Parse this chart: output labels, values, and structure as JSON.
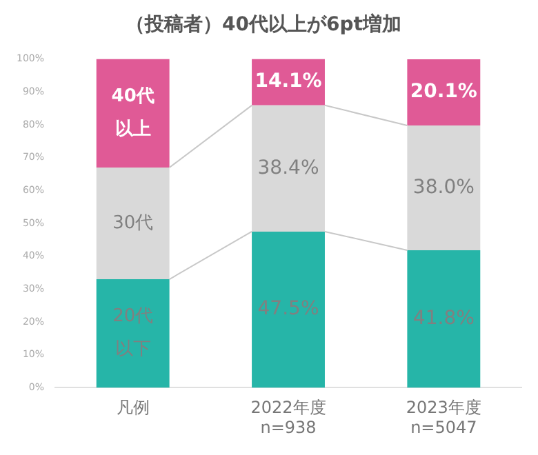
{
  "chart_data": {
    "type": "bar",
    "title": "（投稿者）40代以上が6pt増加",
    "stacked": true,
    "categories": [
      "凡例",
      "2022年度\nn=938",
      "2023年度\nn=5047"
    ],
    "series": [
      {
        "color": "#26b5a8",
        "values": [
          33,
          47.5,
          41.8
        ],
        "value_labels": [
          null,
          "47.5%",
          "41.8%"
        ]
      },
      {
        "color": "#d9d9d9",
        "values": [
          34,
          38.4,
          38.0
        ],
        "value_labels": [
          null,
          "38.4%",
          "38.0%"
        ]
      },
      {
        "color": "#e05a96",
        "values": [
          33,
          14.1,
          20.1
        ],
        "value_labels": [
          null,
          "14.1%",
          "20.1%"
        ]
      }
    ],
    "annotations": [
      "20代以下",
      "30代",
      "40代以上"
    ],
    "ylim": [
      0,
      100
    ],
    "yticks": [
      {
        "value": 0,
        "label": "0%"
      },
      {
        "value": 10,
        "label": "10%"
      },
      {
        "value": 20,
        "label": "20%"
      },
      {
        "value": 30,
        "label": "30%"
      },
      {
        "value": 40,
        "label": "40%"
      },
      {
        "value": 50,
        "label": "50%"
      },
      {
        "value": 60,
        "label": "60%"
      },
      {
        "value": 70,
        "label": "70%"
      },
      {
        "value": 80,
        "label": "80%"
      },
      {
        "value": 90,
        "label": "90%"
      },
      {
        "value": 100,
        "label": "100%"
      }
    ],
    "grid": false,
    "legend": false
  }
}
